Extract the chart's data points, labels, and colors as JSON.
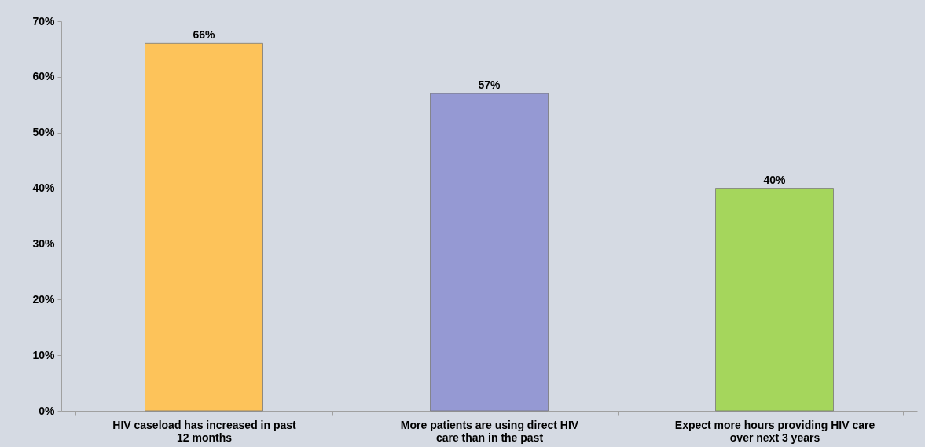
{
  "chart_data": {
    "type": "bar",
    "categories": [
      "HIV caseload has increased in past 12 months",
      "More patients are using direct HIV care than in the past",
      "Expect more hours providing HIV care over next 3 years"
    ],
    "values": [
      66,
      57,
      40
    ],
    "colors": [
      "#fdc35a",
      "#9599d3",
      "#a5d65c"
    ],
    "value_labels": [
      "66%",
      "57%",
      "40%"
    ],
    "ylim": [
      0,
      70
    ],
    "yticks": [
      {
        "value": 0,
        "label": "0%"
      },
      {
        "value": 10,
        "label": "10%"
      },
      {
        "value": 20,
        "label": "20%"
      },
      {
        "value": 30,
        "label": "30%"
      },
      {
        "value": 40,
        "label": "40%"
      },
      {
        "value": 50,
        "label": "50%"
      },
      {
        "value": 60,
        "label": "60%"
      },
      {
        "value": 70,
        "label": "70%"
      }
    ],
    "grid": false
  }
}
